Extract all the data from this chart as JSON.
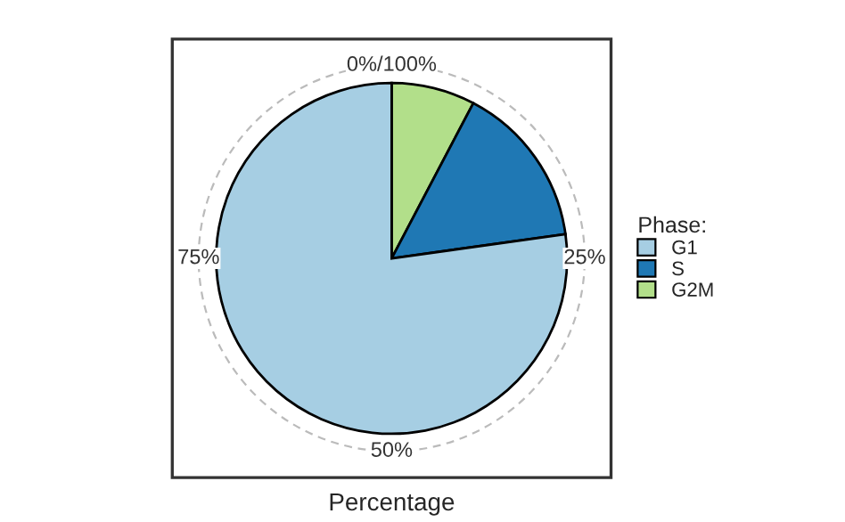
{
  "chart_data": {
    "type": "pie",
    "xlabel": "Percentage",
    "legend_title": "Phase:",
    "categories": [
      "G1",
      "S",
      "G2M"
    ],
    "values": [
      77.2,
      15.1,
      7.7
    ],
    "colors": [
      "#a6cee3",
      "#1f78b4",
      "#b2df8a"
    ],
    "annotations": [
      "0%/100%",
      "25%",
      "50%",
      "75%"
    ],
    "grid": true,
    "legend": "right"
  }
}
